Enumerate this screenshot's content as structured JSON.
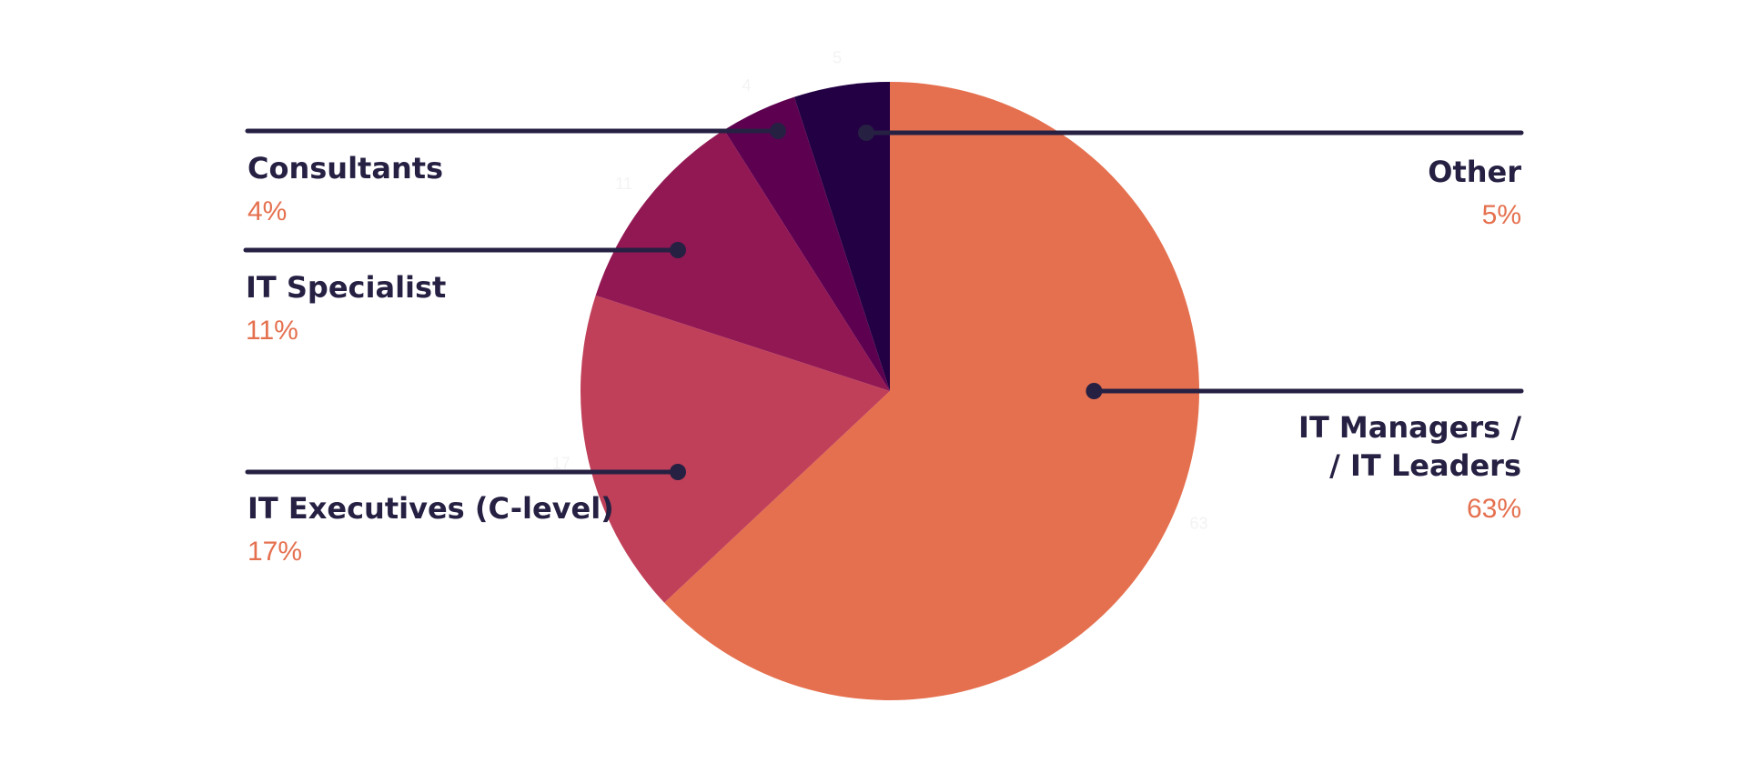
{
  "chart_data": {
    "type": "pie",
    "start_angle_deg": 0,
    "direction": "clockwise",
    "slices": [
      {
        "label": "IT Managers /\n/ IT Leaders",
        "value": 63,
        "percent_label": "63%",
        "color": "#e5704f"
      },
      {
        "label": "IT Executives (C-level)",
        "value": 17,
        "percent_label": "17%",
        "color": "#c04059"
      },
      {
        "label": "IT Specialist",
        "value": 11,
        "percent_label": "11%",
        "color": "#921854"
      },
      {
        "label": "Consultants",
        "value": 4,
        "percent_label": "4%",
        "color": "#5e0050"
      },
      {
        "label": "Other",
        "value": 5,
        "percent_label": "5%",
        "color": "#220043"
      }
    ],
    "leader_color": "#262043",
    "label_color": "#262043",
    "percent_color": "#e5704f"
  }
}
